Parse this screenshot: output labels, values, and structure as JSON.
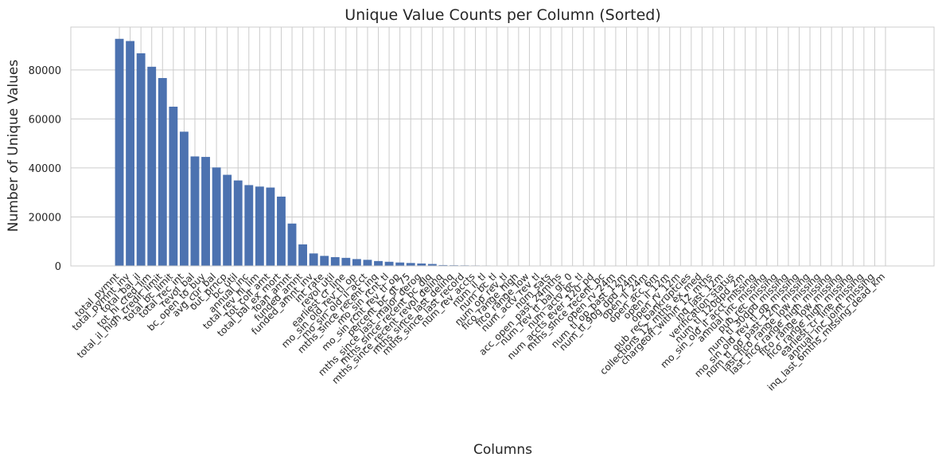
{
  "chart_data": {
    "type": "bar",
    "title": "Unique Value Counts per Column (Sorted)",
    "xlabel": "Columns",
    "ylabel": "Number of Unique Values",
    "ylim": [
      0,
      97500
    ],
    "yticks": [
      0,
      20000,
      40000,
      60000,
      80000
    ],
    "ytick_labels": [
      "0",
      "20000",
      "40000",
      "60000",
      "80000"
    ],
    "grid": true,
    "bar_color": "#4c72b0",
    "categories": [
      "total_pymnt",
      "total_pymnt_inv",
      "total_bal_il",
      "tot_hi_cred_lim",
      "total_il_high_credit_limit",
      "total_bc_limit",
      "total_rec_int",
      "revol_bal",
      "bc_open_to_buy",
      "avg_cur_bal",
      "out_prncp",
      "bc_util",
      "annual_inc",
      "total_rev_hi_lim",
      "tot_coll_amt",
      "total_bal_ex_mort",
      "loan_amnt",
      "funded_amnt",
      "funded_amnt_inv",
      "int_rate",
      "revol_util",
      "earliest_cr_line",
      "mo_sin_old_rev_tl_op",
      "mo_sin_old_il_acct",
      "mths_since_recent_inq",
      "mo_sin_rcnt_tl",
      "mo_sin_rcnt_rev_tl_op",
      "percent_bc_gt_75",
      "mths_since_last_major_derog",
      "mths_since_recent_bc_dlq",
      "mths_since_recent_revol_delinq",
      "mths_since_last_delinq",
      "mths_since_last_record",
      "num_rev_accts",
      "num_il_tl",
      "num_bc_tl",
      "num_op_rev_tl",
      "fico_range_high",
      "fico_range_low",
      "num_actv_rev_tl",
      "num_sats",
      "acc_open_past_24mths",
      "num_rev_tl_bal_gt_0",
      "num_actv_bc_tl",
      "num_accts_ever_120_pd",
      "mths_since_recent_bc",
      "open_rv_24m",
      "num_tl_op_past_12m",
      "num_tl_90g_dpd_24m",
      "open_il_24m",
      "open_acc_6m",
      "open_il_12m",
      "open_rv_12m",
      "pub_rec_bankruptcies",
      "collections_12_mths_ex_med",
      "chargeoff_within_12_mths",
      "inq_last_12m",
      "verification_status",
      "num_tl_120dpd_2m",
      "mo_sin_old_il_acct_missing",
      "annual_inc_missing",
      "pub_rec_missing",
      "num_tl_30dpd_missing",
      "mo_sin_old_rev_tl_op_missing",
      "num_tl_op_past_12m_missing",
      "last_fico_range_low_missing",
      "last_fico_range_high_missing",
      "fico_range_low_missing",
      "fico_range_high_missing",
      "earliest_cr_line_missing",
      "annual_inc_joint_missing",
      "inq_last_6mths_missing_dead_km"
    ],
    "values": [
      92700,
      91800,
      86800,
      81300,
      76700,
      65000,
      54800,
      44700,
      44500,
      40200,
      37200,
      34900,
      33000,
      32400,
      32000,
      28300,
      17300,
      8800,
      5100,
      4100,
      3600,
      3300,
      2800,
      2500,
      2000,
      1700,
      1400,
      1200,
      1000,
      800,
      350,
      280,
      240,
      200,
      180,
      160,
      150,
      140,
      130,
      120,
      110,
      100,
      95,
      90,
      85,
      80,
      75,
      70,
      65,
      60,
      55,
      50,
      48,
      45,
      42,
      40,
      38,
      36,
      34,
      32,
      30,
      28,
      26,
      24,
      22,
      20,
      18,
      16,
      14,
      12,
      10,
      8
    ]
  }
}
